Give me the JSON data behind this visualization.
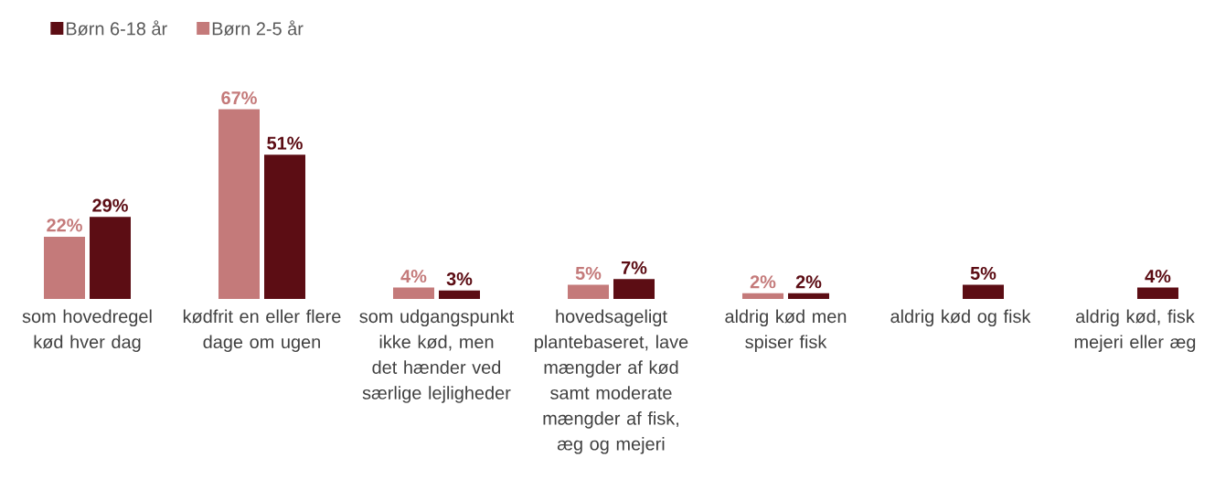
{
  "chart_data": {
    "type": "bar",
    "categories": [
      "som hovedregel kød hver dag",
      "kødfrit en eller flere dage om ugen",
      "som udgangspunkt ikke kød, men det hænder ved særlige lejligheder",
      "hovedsageligt plantebaseret, lave mængder af kød samt moderate mængder af fisk, æg og mejeri",
      "aldrig kød men spiser fisk",
      "aldrig kød og fisk",
      "aldrig kød, fisk mejeri eller æg"
    ],
    "series": [
      {
        "name": "Børn 2-5 år",
        "color": "#c47a7a",
        "values": [
          22,
          67,
          4,
          5,
          2,
          null,
          null
        ],
        "value_labels": [
          "22%",
          "67%",
          "4%",
          "5%",
          "2%",
          null,
          null
        ]
      },
      {
        "name": "Børn 6-18 år",
        "color": "#5c0d14",
        "values": [
          29,
          51,
          3,
          7,
          2,
          5,
          4
        ],
        "value_labels": [
          "29%",
          "51%",
          "3%",
          "7%",
          "2%",
          "5%",
          "4%"
        ]
      }
    ],
    "legend": "top left"
  }
}
